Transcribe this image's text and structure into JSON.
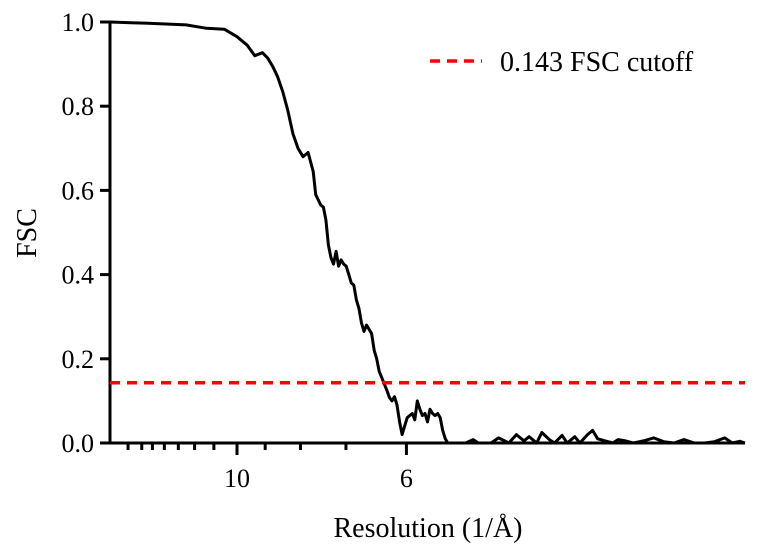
{
  "chart_data": {
    "type": "line",
    "xlabel": "Resolution (1/Å)",
    "ylabel": "FSC",
    "xlim": [
      0.05,
      0.3
    ],
    "ylim": [
      0,
      1.0
    ],
    "x_scale": "linear in 1/Å, tick labels shown as resolution in Å",
    "x_ticks": [
      {
        "value": 0.1,
        "label": "10"
      },
      {
        "value": 0.1667,
        "label": "6"
      }
    ],
    "x_minor_ticks": [
      0.0571,
      0.0625,
      0.0667,
      0.0714,
      0.0769,
      0.0833,
      0.0909,
      0.1111,
      0.125,
      0.1429
    ],
    "y_ticks": [
      {
        "value": 0.0,
        "label": "0.0"
      },
      {
        "value": 0.2,
        "label": "0.2"
      },
      {
        "value": 0.4,
        "label": "0.4"
      },
      {
        "value": 0.6,
        "label": "0.6"
      },
      {
        "value": 0.8,
        "label": "0.8"
      },
      {
        "value": 1.0,
        "label": "1.0"
      }
    ],
    "grid": false,
    "legend_position": "top-right",
    "series": [
      {
        "name": "",
        "color": "#000000",
        "style": "solid",
        "x": [
          0.05,
          0.065,
          0.08,
          0.088,
          0.095,
          0.1,
          0.104,
          0.107,
          0.11,
          0.112,
          0.114,
          0.116,
          0.118,
          0.12,
          0.122,
          0.124,
          0.126,
          0.128,
          0.13,
          0.131,
          0.133,
          0.134,
          0.135,
          0.136,
          0.137,
          0.138,
          0.139,
          0.14,
          0.141,
          0.142,
          0.143,
          0.144,
          0.145,
          0.146,
          0.147,
          0.148,
          0.149,
          0.15,
          0.151,
          0.152,
          0.153,
          0.154,
          0.155,
          0.156,
          0.157,
          0.158,
          0.159,
          0.16,
          0.161,
          0.162,
          0.163,
          0.164,
          0.165,
          0.166,
          0.167,
          0.168,
          0.169,
          0.17,
          0.171,
          0.172,
          0.173,
          0.174,
          0.175,
          0.176,
          0.177,
          0.178,
          0.179,
          0.18,
          0.181,
          0.182,
          0.183,
          0.184,
          0.185,
          0.186,
          0.187,
          0.188,
          0.189,
          0.19,
          0.193,
          0.195,
          0.2,
          0.203,
          0.207,
          0.21,
          0.213,
          0.215,
          0.218,
          0.22,
          0.223,
          0.225,
          0.228,
          0.23,
          0.233,
          0.235,
          0.238,
          0.24,
          0.242,
          0.245,
          0.248,
          0.25,
          0.253,
          0.256,
          0.26,
          0.264,
          0.268,
          0.272,
          0.276,
          0.28,
          0.284,
          0.288,
          0.292,
          0.295,
          0.298,
          0.3
        ],
        "y": [
          1.0,
          0.997,
          0.993,
          0.985,
          0.983,
          0.965,
          0.945,
          0.92,
          0.927,
          0.915,
          0.895,
          0.87,
          0.835,
          0.79,
          0.735,
          0.7,
          0.68,
          0.69,
          0.645,
          0.59,
          0.565,
          0.56,
          0.53,
          0.47,
          0.44,
          0.425,
          0.455,
          0.42,
          0.435,
          0.425,
          0.42,
          0.4,
          0.38,
          0.375,
          0.34,
          0.32,
          0.285,
          0.265,
          0.28,
          0.27,
          0.26,
          0.22,
          0.2,
          0.17,
          0.155,
          0.14,
          0.125,
          0.108,
          0.1,
          0.11,
          0.09,
          0.05,
          0.02,
          0.04,
          0.06,
          0.065,
          0.07,
          0.055,
          0.1,
          0.08,
          0.065,
          0.07,
          0.05,
          0.08,
          0.07,
          0.065,
          0.07,
          0.06,
          0.03,
          0.01,
          0.0,
          0.0,
          0.0,
          0.0,
          0.0,
          0.0,
          0.0,
          0.0,
          0.008,
          0.0,
          0.0,
          0.012,
          0.0,
          0.02,
          0.005,
          0.015,
          0.0,
          0.025,
          0.008,
          0.0,
          0.018,
          0.0,
          0.015,
          0.0,
          0.02,
          0.03,
          0.01,
          0.005,
          0.0,
          0.008,
          0.005,
          0.0,
          0.005,
          0.012,
          0.003,
          0.0,
          0.008,
          0.0,
          0.0,
          0.003,
          0.012,
          0.0,
          0.004,
          0.0
        ]
      },
      {
        "name": "0.143 FSC cutoff",
        "color": "#ff0000",
        "style": "dashed",
        "x": [
          0.05,
          0.3
        ],
        "y": [
          0.143,
          0.143
        ]
      }
    ]
  }
}
